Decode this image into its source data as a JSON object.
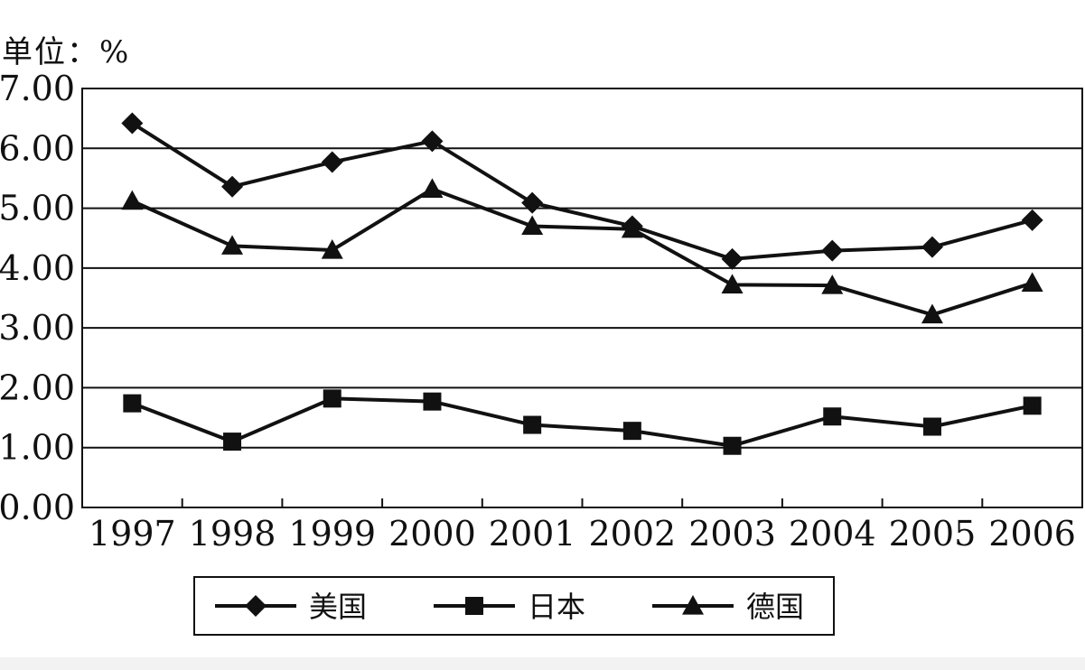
{
  "chart_data": {
    "type": "line",
    "unit_label": "单位：%",
    "categories": [
      "1997",
      "1998",
      "1999",
      "2000",
      "2001",
      "2002",
      "2003",
      "2004",
      "2005",
      "2006"
    ],
    "y_tick_labels": [
      "0.00",
      "1.00",
      "2.00",
      "3.00",
      "4.00",
      "5.00",
      "6.00",
      "7.00"
    ],
    "ylim": [
      0,
      7
    ],
    "grid": "horizontal",
    "legend_position": "bottom",
    "series": [
      {
        "name": "美国",
        "marker": "diamond",
        "values": [
          6.42,
          5.36,
          5.77,
          6.12,
          5.09,
          4.7,
          4.15,
          4.29,
          4.35,
          4.8
        ]
      },
      {
        "name": "日本",
        "marker": "square",
        "values": [
          1.74,
          1.1,
          1.82,
          1.77,
          1.38,
          1.28,
          1.03,
          1.52,
          1.35,
          1.7
        ]
      },
      {
        "name": "德国",
        "marker": "triangle",
        "values": [
          5.12,
          4.37,
          4.3,
          5.32,
          4.7,
          4.65,
          3.72,
          3.71,
          3.22,
          3.75
        ]
      }
    ]
  }
}
